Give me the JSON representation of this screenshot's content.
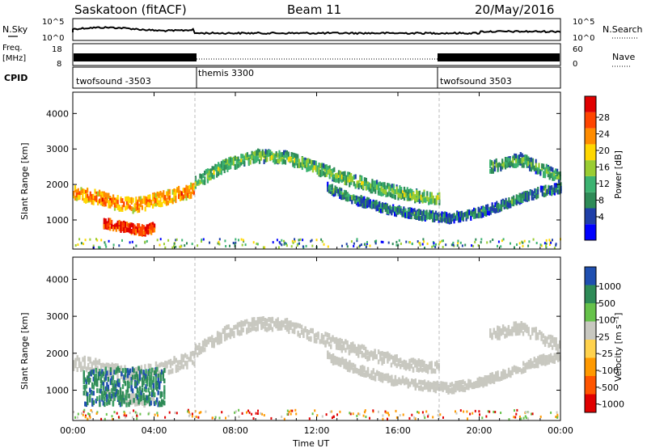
{
  "header": {
    "station": "Saskatoon (fitACF)",
    "beam": "Beam 11",
    "date": "20/May/2016"
  },
  "noise_panel": {
    "left_label": "N.Sky",
    "right_label": "N.Search",
    "left_ticks": [
      "10^5",
      "10^0"
    ],
    "right_ticks": [
      "10^5",
      "10^0"
    ]
  },
  "freq_panel": {
    "left_label_line1": "Freq.",
    "left_label_line2": "[MHz]",
    "left_ticks": [
      "18",
      "8"
    ],
    "right_label": "Nave",
    "right_ticks": [
      "60",
      "0"
    ]
  },
  "cpid": {
    "label": "CPID",
    "segments": [
      {
        "name": "twofsound -3503",
        "start_hour": 0,
        "end_hour": 6
      },
      {
        "name": "themis 3300",
        "start_hour": 6,
        "end_hour": 18
      },
      {
        "name": "twofsound 3503",
        "start_hour": 18,
        "end_hour": 24
      }
    ]
  },
  "chart_data": [
    {
      "type": "heatmap",
      "title": "Power",
      "xlabel": "Time UT",
      "ylabel": "Slant Range [km]",
      "xlim_hours": [
        0,
        24
      ],
      "ylim": [
        180,
        4600
      ],
      "x_ticks": [
        "00:00",
        "04:00",
        "08:00",
        "12:00",
        "16:00",
        "20:00",
        "00:00"
      ],
      "y_ticks": [
        1000,
        2000,
        3000,
        4000
      ],
      "colorbar_label": "Power [dB]",
      "colorbar_ticks": [
        "28",
        "24",
        "20",
        "16",
        "12",
        "8",
        "4"
      ],
      "colorbar_colors": [
        "#0000ff",
        "#1f3fa8",
        "#2e8b57",
        "#3cb371",
        "#9acd32",
        "#ffd700",
        "#ff8c00",
        "#ff4500",
        "#e00000"
      ],
      "bands": [
        {
          "t": [
            0.0,
            1.0,
            2.0,
            3.0,
            4.0,
            5.0,
            6.0
          ],
          "range": [
            1750,
            1650,
            1500,
            1400,
            1550,
            1700,
            1850
          ],
          "width": 350,
          "power": 22
        },
        {
          "t": [
            6.0,
            7.5,
            9.0,
            10.5,
            12.0,
            13.5,
            15.0,
            16.5,
            18.0
          ],
          "range": [
            2050,
            2550,
            2800,
            2750,
            2450,
            2150,
            1900,
            1700,
            1600
          ],
          "width": 300,
          "power": 14
        },
        {
          "t": [
            12.5,
            14.0,
            15.5,
            17.0,
            18.5,
            20.0,
            21.5,
            23.0,
            24.0
          ],
          "range": [
            1900,
            1550,
            1300,
            1150,
            1050,
            1200,
            1500,
            1800,
            1900
          ],
          "width": 220,
          "power": 10
        },
        {
          "t": [
            1.5,
            2.5,
            3.5,
            4.0
          ],
          "range": [
            900,
            800,
            700,
            800
          ],
          "width": 250,
          "power": 28
        },
        {
          "t": [
            20.5,
            22.0,
            23.5,
            24.0
          ],
          "range": [
            2500,
            2700,
            2300,
            2200
          ],
          "width": 300,
          "power": 12
        }
      ]
    },
    {
      "type": "heatmap",
      "title": "Velocity",
      "xlabel": "Time UT",
      "ylabel": "Slant Range [km]",
      "xlim_hours": [
        0,
        24
      ],
      "ylim": [
        180,
        4600
      ],
      "x_ticks": [
        "00:00",
        "04:00",
        "08:00",
        "12:00",
        "16:00",
        "20:00",
        "00:00"
      ],
      "y_ticks": [
        1000,
        2000,
        3000,
        4000
      ],
      "colorbar_label": "Velocity [m s⁻¹]",
      "colorbar_ticks": [
        "1000",
        "500",
        "100",
        "25",
        "-25",
        "-100",
        "-500",
        "-1000"
      ],
      "colorbar_colors": [
        "#1f4fb0",
        "#2e8b57",
        "#66c24a",
        "#c8c8c0",
        "#ffd24d",
        "#ff9900",
        "#ff5500",
        "#e00000"
      ],
      "dominant": "ground scatter (grey, |v| < 25 m/s)",
      "green_region": {
        "t": [
          0.5,
          4.5
        ],
        "range": [
          600,
          1600
        ],
        "velocity": 300
      }
    }
  ]
}
